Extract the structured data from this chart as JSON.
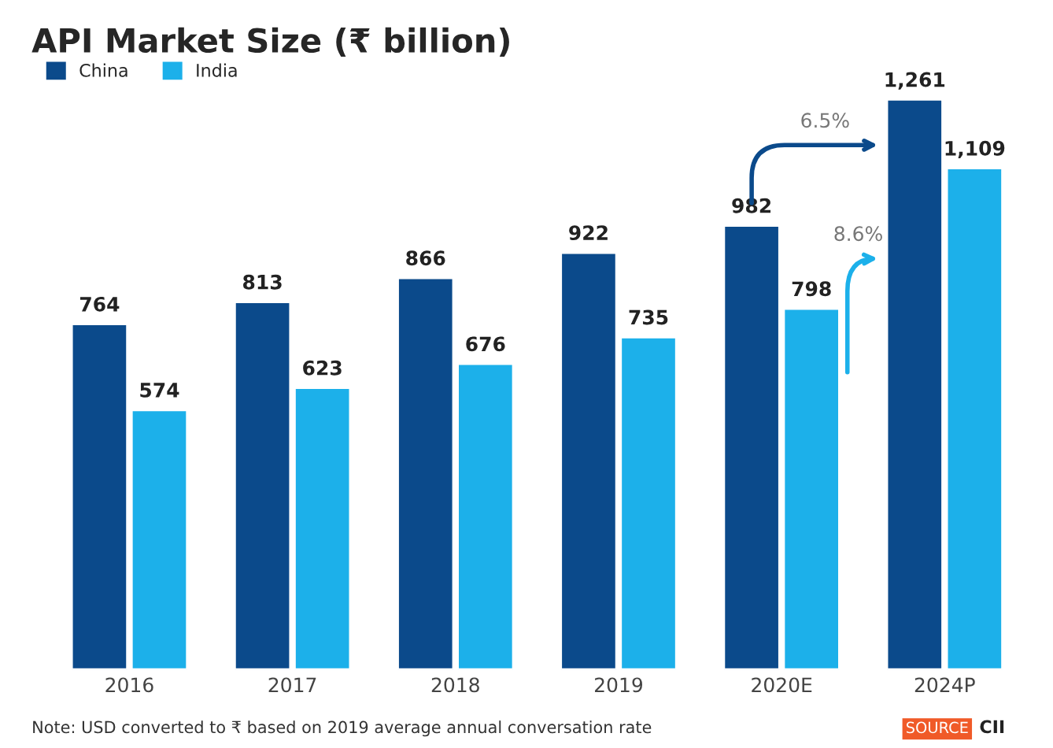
{
  "chart_data": {
    "type": "bar",
    "title": "API Market Size (₹ billion)",
    "categories": [
      "2016",
      "2017",
      "2018",
      "2019",
      "2020E",
      "2024P"
    ],
    "series": [
      {
        "name": "China",
        "color": "#0b4a8b",
        "values": [
          764,
          813,
          866,
          922,
          982,
          1261
        ],
        "value_labels": [
          "764",
          "813",
          "866",
          "922",
          "982",
          "1,261"
        ]
      },
      {
        "name": "India",
        "color": "#1cb0ea",
        "values": [
          574,
          623,
          676,
          735,
          798,
          1109
        ],
        "value_labels": [
          "574",
          "623",
          "676",
          "735",
          "798",
          "1,109"
        ]
      }
    ],
    "tick_labels": "x",
    "legend": "top left",
    "annotations": [
      "6.5%",
      "8.6%",
      "Note: USD converted to ₹ based on 2019 average annual conversation rate",
      "SOURCE",
      "CII"
    ]
  }
}
